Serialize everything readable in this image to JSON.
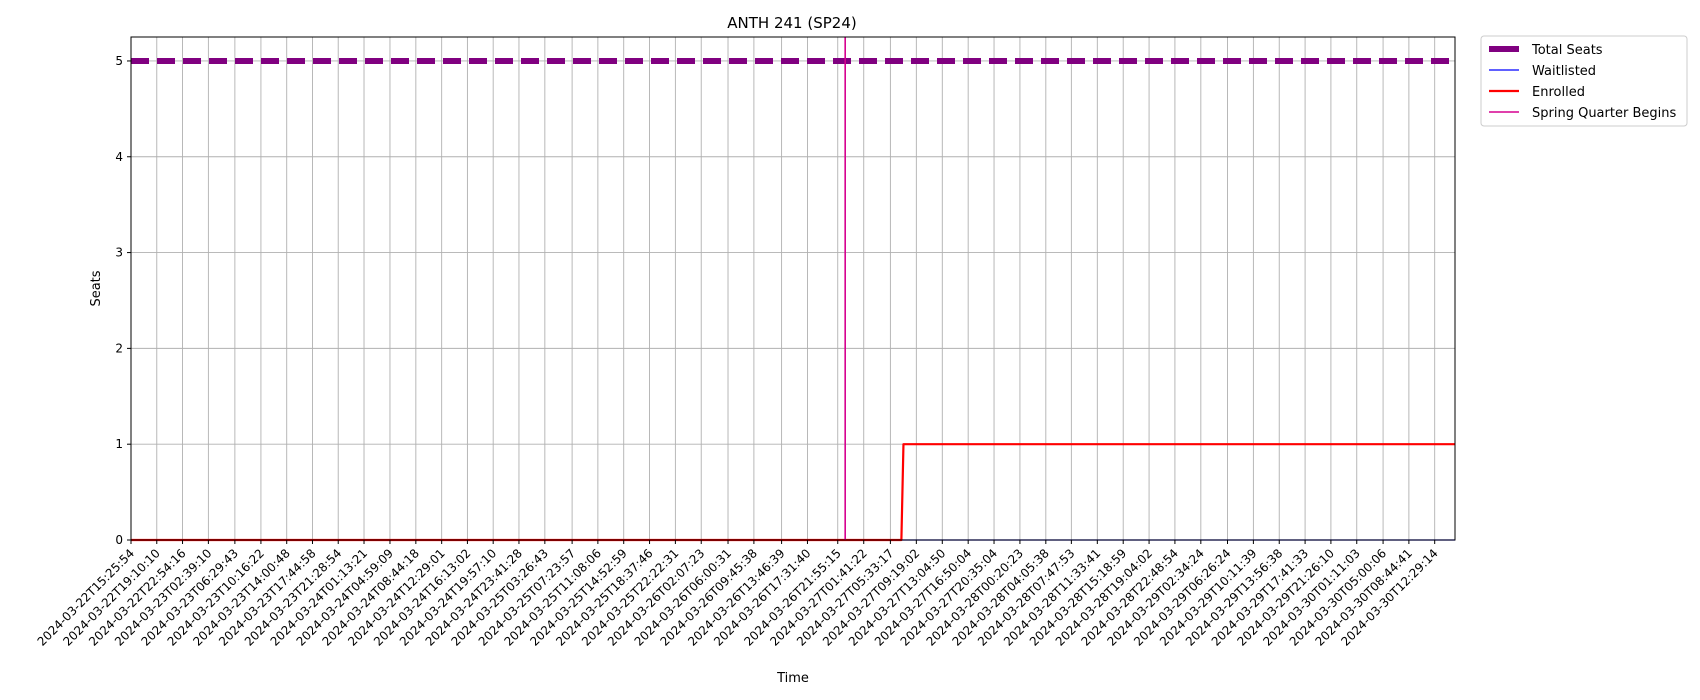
{
  "chart_data": {
    "type": "line",
    "title": "ANTH 241 (SP24)",
    "xlabel": "Time",
    "ylabel": "Seats",
    "ylim": [
      0,
      5.25
    ],
    "yticks": [
      0,
      1,
      2,
      3,
      4,
      5
    ],
    "grid": true,
    "legend_position": "outside-top-right",
    "x": [
      "2024-03-22T15:25:54",
      "2024-03-22T19:10:10",
      "2024-03-22T22:54:16",
      "2024-03-23T02:39:10",
      "2024-03-23T06:29:43",
      "2024-03-23T10:16:22",
      "2024-03-23T14:00:48",
      "2024-03-23T17:44:58",
      "2024-03-23T21:28:54",
      "2024-03-24T01:13:21",
      "2024-03-24T04:59:09",
      "2024-03-24T08:44:18",
      "2024-03-24T12:29:01",
      "2024-03-24T16:13:02",
      "2024-03-24T19:57:10",
      "2024-03-24T23:41:28",
      "2024-03-25T03:26:43",
      "2024-03-25T07:23:57",
      "2024-03-25T11:08:06",
      "2024-03-25T14:52:59",
      "2024-03-25T18:37:46",
      "2024-03-25T22:22:31",
      "2024-03-26T02:07:23",
      "2024-03-26T06:00:31",
      "2024-03-26T09:45:38",
      "2024-03-26T13:46:39",
      "2024-03-26T17:31:40",
      "2024-03-26T21:55:15",
      "2024-03-27T01:41:22",
      "2024-03-27T05:33:17",
      "2024-03-27T09:19:02",
      "2024-03-27T13:04:50",
      "2024-03-27T16:50:04",
      "2024-03-27T20:35:04",
      "2024-03-28T00:20:23",
      "2024-03-28T04:05:38",
      "2024-03-28T07:47:53",
      "2024-03-28T11:33:41",
      "2024-03-28T15:18:59",
      "2024-03-28T19:04:02",
      "2024-03-28T22:48:54",
      "2024-03-29T02:34:24",
      "2024-03-29T06:26:24",
      "2024-03-29T10:11:39",
      "2024-03-29T13:56:38",
      "2024-03-29T17:41:33",
      "2024-03-29T21:26:10",
      "2024-03-30T01:11:03",
      "2024-03-30T05:00:06",
      "2024-03-30T08:44:41",
      "2024-03-30T12:29:14"
    ],
    "x_range": [
      "2024-03-22T15:25:54",
      "2024-03-30T15:25:54"
    ],
    "series": [
      {
        "name": "Total Seats",
        "color": "#800080",
        "style": "dashed",
        "points": [
          [
            "2024-03-22T15:25:54",
            5
          ],
          [
            "2024-03-30T15:25:54",
            5
          ]
        ]
      },
      {
        "name": "Waitlisted",
        "color": "#0000ff",
        "style": "solid",
        "points": [
          [
            "2024-03-22T15:25:54",
            0
          ],
          [
            "2024-03-30T15:25:54",
            0
          ]
        ]
      },
      {
        "name": "Enrolled",
        "color": "#ff0000",
        "style": "solid",
        "points": [
          [
            "2024-03-22T15:25:54",
            0
          ],
          [
            "2024-03-27T07:09:00",
            0
          ],
          [
            "2024-03-27T07:27:00",
            1
          ],
          [
            "2024-03-30T15:25:54",
            1
          ]
        ]
      }
    ],
    "annotations": [
      {
        "name": "Spring Quarter Begins",
        "type": "vline",
        "color": "#d6008f",
        "x": "2024-03-26T23:00:00"
      }
    ]
  }
}
